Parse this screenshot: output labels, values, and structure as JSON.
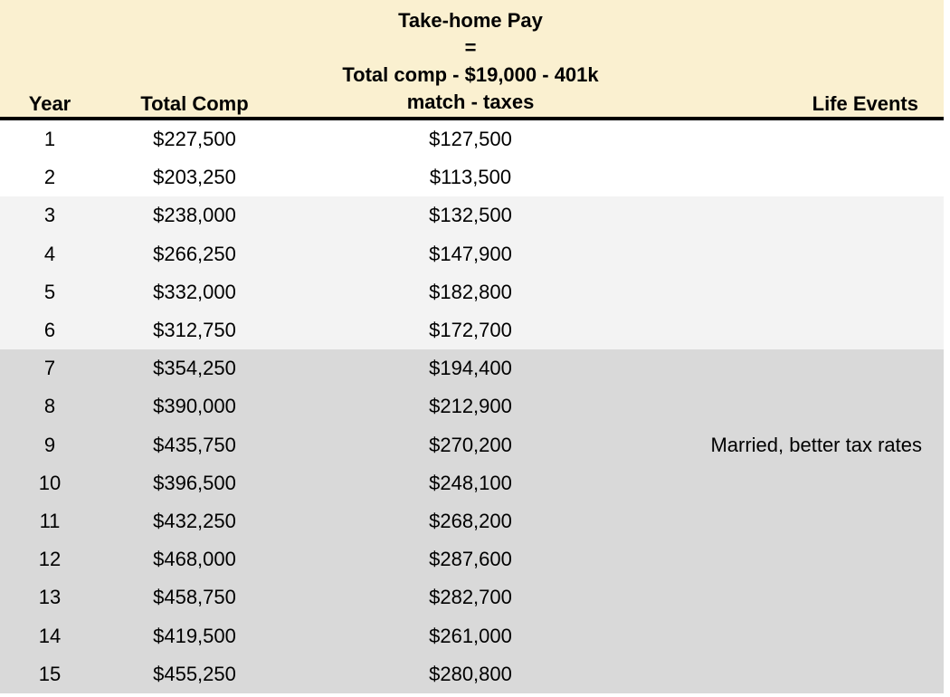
{
  "table": {
    "header": {
      "year": "Year",
      "total_comp": "Total Comp",
      "take_home_lines": [
        "Take-home Pay",
        "=",
        "Total comp - $19,000 - 401k",
        "match - taxes"
      ],
      "life_events": "Life Events"
    },
    "rows": [
      {
        "year": "1",
        "total_comp": "$227,500",
        "take_home": "$127,500",
        "life_events": "",
        "shade": "none"
      },
      {
        "year": "2",
        "total_comp": "$203,250",
        "take_home": "$113,500",
        "life_events": "",
        "shade": "none"
      },
      {
        "year": "3",
        "total_comp": "$238,000",
        "take_home": "$132,500",
        "life_events": "",
        "shade": "light"
      },
      {
        "year": "4",
        "total_comp": "$266,250",
        "take_home": "$147,900",
        "life_events": "",
        "shade": "light"
      },
      {
        "year": "5",
        "total_comp": "$332,000",
        "take_home": "$182,800",
        "life_events": "",
        "shade": "light"
      },
      {
        "year": "6",
        "total_comp": "$312,750",
        "take_home": "$172,700",
        "life_events": "",
        "shade": "light"
      },
      {
        "year": "7",
        "total_comp": "$354,250",
        "take_home": "$194,400",
        "life_events": "",
        "shade": "medium"
      },
      {
        "year": "8",
        "total_comp": "$390,000",
        "take_home": "$212,900",
        "life_events": "",
        "shade": "medium"
      },
      {
        "year": "9",
        "total_comp": "$435,750",
        "take_home": "$270,200",
        "life_events": "Married, better tax rates",
        "shade": "medium"
      },
      {
        "year": "10",
        "total_comp": "$396,500",
        "take_home": "$248,100",
        "life_events": "",
        "shade": "medium"
      },
      {
        "year": "11",
        "total_comp": "$432,250",
        "take_home": "$268,200",
        "life_events": "",
        "shade": "medium"
      },
      {
        "year": "12",
        "total_comp": "$468,000",
        "take_home": "$287,600",
        "life_events": "",
        "shade": "medium"
      },
      {
        "year": "13",
        "total_comp": "$458,750",
        "take_home": "$282,700",
        "life_events": "",
        "shade": "medium"
      },
      {
        "year": "14",
        "total_comp": "$419,500",
        "take_home": "$261,000",
        "life_events": "",
        "shade": "medium"
      },
      {
        "year": "15",
        "total_comp": "$455,250",
        "take_home": "$280,800",
        "life_events": "",
        "shade": "medium"
      }
    ]
  },
  "colors": {
    "header_bg": "#FAF0D0",
    "row_light": "#F3F3F3",
    "row_medium": "#D9D9D9",
    "header_border": "#000000",
    "text": "#000000"
  },
  "chart_data": {
    "type": "table",
    "title": "Yearly compensation vs take-home pay with life events",
    "columns": [
      "Year",
      "Total Comp",
      "Take-home Pay = Total comp - $19,000 - 401k match - taxes",
      "Life Events"
    ],
    "x": [
      1,
      2,
      3,
      4,
      5,
      6,
      7,
      8,
      9,
      10,
      11,
      12,
      13,
      14,
      15
    ],
    "series": [
      {
        "name": "Total Comp",
        "values": [
          227500,
          203250,
          238000,
          266250,
          332000,
          312750,
          354250,
          390000,
          435750,
          396500,
          432250,
          468000,
          458750,
          419500,
          455250
        ]
      },
      {
        "name": "Take-home Pay",
        "values": [
          127500,
          113500,
          132500,
          147900,
          182800,
          172700,
          194400,
          212900,
          270200,
          248100,
          268200,
          287600,
          282700,
          261000,
          280800
        ]
      }
    ],
    "annotations": [
      {
        "x": 9,
        "text": "Married, better tax rates"
      }
    ],
    "legend_position": "none",
    "grid": false
  }
}
